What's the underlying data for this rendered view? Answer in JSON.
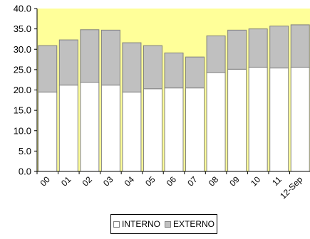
{
  "chart_data": {
    "type": "bar",
    "stacked": true,
    "categories": [
      "00",
      "01",
      "02",
      "03",
      "04",
      "05",
      "06",
      "07",
      "08",
      "09",
      "10",
      "11",
      "12-Sep"
    ],
    "series": [
      {
        "name": "INTERNO",
        "values": [
          19.5,
          21.2,
          21.9,
          21.2,
          19.5,
          20.3,
          20.5,
          20.5,
          24.3,
          25.1,
          25.6,
          25.4,
          25.6
        ],
        "color": "#ffffff"
      },
      {
        "name": "EXTERNO",
        "values": [
          11.4,
          11.1,
          12.9,
          13.5,
          12.1,
          10.6,
          8.6,
          7.6,
          9.0,
          9.6,
          9.4,
          10.3,
          10.4
        ],
        "color": "#c0c0c0"
      }
    ],
    "ylim": [
      0,
      40
    ],
    "yticks": [
      "0.0",
      "5.0",
      "10.0",
      "15.0",
      "20.0",
      "25.0",
      "30.0",
      "35.0",
      "40.0"
    ],
    "ytick_values": [
      0,
      5,
      10,
      15,
      20,
      25,
      30,
      35,
      40
    ],
    "plot_background": "#ffff99",
    "legend_position": "bottom",
    "grid": false
  }
}
